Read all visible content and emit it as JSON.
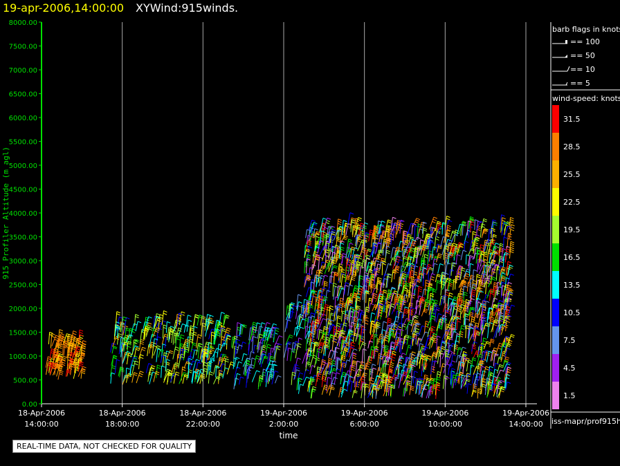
{
  "header": {
    "date_time": "19-apr-2006,14:00:00",
    "product": "XYWind:915winds."
  },
  "legend": {
    "barb_title": "barb flags in knots",
    "barbs": [
      "== 100",
      "== 50",
      "== 10",
      "== 5"
    ],
    "speed_title": "wind-speed: knots",
    "speed_bins": [
      {
        "label": "31.5",
        "color": "#ff0000"
      },
      {
        "label": "28.5",
        "color": "#ff7f00"
      },
      {
        "label": "25.5",
        "color": "#ffb000"
      },
      {
        "label": "22.5",
        "color": "#ffff00"
      },
      {
        "label": "19.5",
        "color": "#a6ff2e"
      },
      {
        "label": "16.5",
        "color": "#00e000"
      },
      {
        "label": "13.5",
        "color": "#00ffff"
      },
      {
        "label": "10.5",
        "color": "#0000ff"
      },
      {
        "label": "7.5",
        "color": "#6495ed"
      },
      {
        "label": "4.5",
        "color": "#a020f0"
      },
      {
        "label": "1.5",
        "color": "#ee82ee"
      }
    ]
  },
  "footer": {
    "source": "iss-mapr/prof915h",
    "notice": "REAL-TIME DATA, NOT CHECKED FOR QUALITY"
  },
  "chart_data": {
    "type": "scatter",
    "title": "XYWind:915winds.",
    "ylabel": "915 Profiler Altitude (m agl)",
    "xlabel": "time",
    "ylim": [
      0,
      8000
    ],
    "yticks": [
      "0.00",
      "500.00",
      "1000.00",
      "1500.00",
      "2000.00",
      "2500.00",
      "3000.00",
      "3500.00",
      "4000.00",
      "4500.00",
      "5000.00",
      "5500.00",
      "6000.00",
      "6500.00",
      "7000.00",
      "7500.00",
      "8000.00"
    ],
    "xticks": [
      {
        "date": "18-Apr-2006",
        "time": "14:00:00"
      },
      {
        "date": "18-Apr-2006",
        "time": "18:00:00"
      },
      {
        "date": "18-Apr-2006",
        "time": "22:00:00"
      },
      {
        "date": "19-Apr-2006",
        "time": "2:00:00"
      },
      {
        "date": "19-Apr-2006",
        "time": "6:00:00"
      },
      {
        "date": "19-Apr-2006",
        "time": "10:00:00"
      },
      {
        "date": "19-Apr-2006",
        "time": "14:00:00"
      }
    ],
    "xrange_hours": [
      0,
      24
    ],
    "series": [
      {
        "x_hours": [
          0.2,
          2.0
        ],
        "ymin": 500,
        "ymax": 1300,
        "speed_range": [
          22.5,
          31.5
        ]
      },
      {
        "x_hours": [
          3.4,
          9.2
        ],
        "ymin": 400,
        "ymax": 1700,
        "speed_range": [
          10.5,
          25.5
        ]
      },
      {
        "x_hours": [
          9.4,
          11.6
        ],
        "ymin": 300,
        "ymax": 1500,
        "speed_range": [
          4.5,
          19.5
        ]
      },
      {
        "x_hours": [
          12.0,
          13.0
        ],
        "ymin": 200,
        "ymax": 2000,
        "speed_range": [
          4.5,
          19.5
        ]
      },
      {
        "x_hours": [
          13.0,
          23.2
        ],
        "ymin": 100,
        "ymax": 3700,
        "speed_range": [
          1.5,
          31.5
        ]
      }
    ]
  }
}
